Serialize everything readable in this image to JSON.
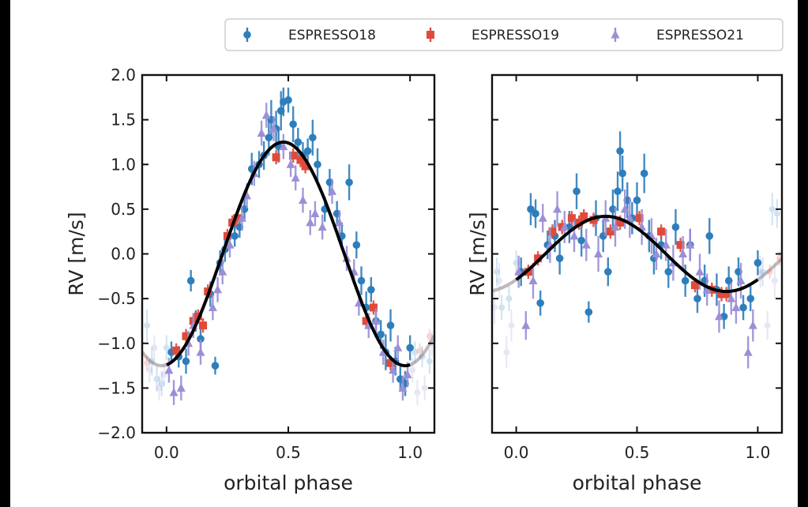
{
  "legend": {
    "entries": [
      {
        "label": "ESPRESSO18",
        "color": "#2e7ebc",
        "marker": "circle"
      },
      {
        "label": "ESPRESSO19",
        "color": "#e04a3a",
        "marker": "square"
      },
      {
        "label": "ESPRESSO21",
        "color": "#9c8fd6",
        "marker": "triangle"
      }
    ]
  },
  "chart_data": [
    {
      "type": "scatter",
      "xlabel": "orbital phase",
      "ylabel": "RV [m/s]",
      "xlim": [
        -0.1,
        1.1
      ],
      "ylim": [
        -2.0,
        2.0
      ],
      "xticks": [
        "0.0",
        "0.5",
        "1.0"
      ],
      "xtick_values": [
        0.0,
        0.5,
        1.0
      ],
      "yticks": [
        "2.0",
        "1.5",
        "1.0",
        "0.5",
        "0.0",
        "−0.5",
        "−1.0",
        "−1.5",
        "−2.0"
      ],
      "ytick_values": [
        2.0,
        1.5,
        1.0,
        0.5,
        0.0,
        -0.5,
        -1.0,
        -1.5,
        -2.0
      ],
      "show_yticklabels": true,
      "model": {
        "amplitude": 1.25,
        "phase_of_max": 0.48,
        "color": "#000000",
        "wrap_color": "#b0a8a8"
      },
      "series": [
        {
          "name": "ESPRESSO18",
          "marker": "circle",
          "color": "#2e7ebc",
          "x": [
            0.02,
            0.05,
            0.08,
            0.1,
            0.12,
            0.14,
            0.18,
            0.2,
            0.22,
            0.24,
            0.28,
            0.3,
            0.32,
            0.35,
            0.38,
            0.4,
            0.42,
            0.43,
            0.45,
            0.46,
            0.47,
            0.48,
            0.5,
            0.52,
            0.54,
            0.56,
            0.58,
            0.6,
            0.62,
            0.65,
            0.67,
            0.7,
            0.72,
            0.75,
            0.78,
            0.8,
            0.82,
            0.84,
            0.86,
            0.88,
            0.9,
            0.92,
            0.94,
            0.96,
            0.98,
            1.0
          ],
          "y": [
            -1.1,
            -1.15,
            -1.2,
            -0.3,
            -0.75,
            -0.95,
            -0.45,
            -1.25,
            -0.1,
            0.05,
            0.2,
            0.3,
            0.5,
            0.95,
            1.0,
            1.1,
            1.3,
            1.5,
            1.4,
            1.2,
            1.6,
            1.7,
            1.72,
            1.45,
            1.25,
            1.1,
            1.15,
            1.3,
            1.0,
            0.5,
            0.8,
            0.45,
            0.2,
            0.8,
            0.1,
            -0.3,
            -0.6,
            -0.4,
            -0.75,
            -0.9,
            -1.1,
            -0.8,
            -1.2,
            -1.4,
            -1.45,
            -1.05
          ],
          "yerr": [
            0.12,
            0.12,
            0.14,
            0.12,
            0.12,
            0.14,
            0.14,
            0.1,
            0.14,
            0.14,
            0.12,
            0.12,
            0.12,
            0.18,
            0.15,
            0.16,
            0.2,
            0.22,
            0.2,
            0.18,
            0.22,
            0.16,
            0.14,
            0.2,
            0.16,
            0.15,
            0.14,
            0.2,
            0.18,
            0.14,
            0.15,
            0.14,
            0.15,
            0.2,
            0.15,
            0.16,
            0.18,
            0.14,
            0.18,
            0.16,
            0.2,
            0.18,
            0.16,
            0.14,
            0.14,
            0.14
          ]
        },
        {
          "name": "ESPRESSO19",
          "marker": "square",
          "color": "#e04a3a",
          "x": [
            0.04,
            0.08,
            0.11,
            0.13,
            0.15,
            0.17,
            0.25,
            0.27,
            0.29,
            0.45,
            0.52,
            0.55,
            0.57,
            0.82,
            0.85,
            0.92
          ],
          "y": [
            -1.08,
            -0.92,
            -0.75,
            -0.7,
            -0.8,
            -0.42,
            0.2,
            0.35,
            0.4,
            1.08,
            1.1,
            1.05,
            0.98,
            -0.75,
            -0.6,
            -1.22
          ],
          "yerr": [
            0.08,
            0.08,
            0.08,
            0.08,
            0.08,
            0.08,
            0.08,
            0.08,
            0.08,
            0.08,
            0.08,
            0.08,
            0.08,
            0.08,
            0.08,
            0.08
          ]
        },
        {
          "name": "ESPRESSO21",
          "marker": "triangle",
          "color": "#9c8fd6",
          "x": [
            0.01,
            0.03,
            0.06,
            0.09,
            0.11,
            0.14,
            0.19,
            0.21,
            0.23,
            0.26,
            0.31,
            0.33,
            0.36,
            0.39,
            0.41,
            0.44,
            0.48,
            0.51,
            0.53,
            0.56,
            0.59,
            0.61,
            0.64,
            0.68,
            0.71,
            0.74,
            0.77,
            0.79,
            0.83,
            0.86,
            0.89,
            0.93,
            0.95,
            0.97,
            0.99
          ],
          "y": [
            -1.3,
            -1.55,
            -1.5,
            -1.0,
            -0.8,
            -1.1,
            -0.6,
            -0.4,
            -0.2,
            0.1,
            0.4,
            0.65,
            0.9,
            1.35,
            1.55,
            1.4,
            1.2,
            1.0,
            0.85,
            0.6,
            0.35,
            0.45,
            0.3,
            0.7,
            0.35,
            -0.05,
            -0.2,
            -0.55,
            -0.8,
            -0.75,
            -1.1,
            -1.3,
            -1.05,
            -1.5,
            -1.35
          ],
          "yerr": [
            0.14,
            0.14,
            0.14,
            0.14,
            0.14,
            0.14,
            0.14,
            0.14,
            0.14,
            0.14,
            0.14,
            0.14,
            0.14,
            0.14,
            0.14,
            0.14,
            0.14,
            0.14,
            0.14,
            0.14,
            0.14,
            0.14,
            0.14,
            0.14,
            0.14,
            0.14,
            0.14,
            0.14,
            0.14,
            0.14,
            0.14,
            0.14,
            0.14,
            0.14,
            0.14
          ]
        }
      ]
    },
    {
      "type": "scatter",
      "xlabel": "orbital phase",
      "ylabel": "RV [m/s]",
      "xlim": [
        -0.1,
        1.1
      ],
      "ylim": [
        -2.0,
        2.0
      ],
      "xticks": [
        "0.0",
        "0.5",
        "1.0"
      ],
      "xtick_values": [
        0.0,
        0.5,
        1.0
      ],
      "yticks": [],
      "ytick_values": [
        2.0,
        1.5,
        1.0,
        0.5,
        0.0,
        -0.5,
        -1.0,
        -1.5,
        -2.0
      ],
      "show_yticklabels": false,
      "model": {
        "amplitude": 0.42,
        "phase_of_max": 0.37,
        "color": "#000000",
        "wrap_color": "#b0a8a8"
      },
      "series": [
        {
          "name": "ESPRESSO18",
          "marker": "circle",
          "color": "#2e7ebc",
          "x": [
            0.02,
            0.06,
            0.08,
            0.1,
            0.13,
            0.16,
            0.18,
            0.22,
            0.25,
            0.27,
            0.3,
            0.33,
            0.36,
            0.38,
            0.4,
            0.42,
            0.43,
            0.44,
            0.46,
            0.48,
            0.5,
            0.53,
            0.55,
            0.57,
            0.6,
            0.63,
            0.66,
            0.7,
            0.72,
            0.75,
            0.78,
            0.8,
            0.83,
            0.86,
            0.88,
            0.92,
            0.94,
            0.97,
            1.0
          ],
          "y": [
            -0.2,
            0.5,
            0.45,
            -0.55,
            0.1,
            0.2,
            -0.05,
            0.3,
            0.7,
            0.15,
            -0.65,
            0.4,
            0.2,
            -0.2,
            0.5,
            0.7,
            1.15,
            0.9,
            0.6,
            0.4,
            0.6,
            0.9,
            0.2,
            -0.05,
            0.1,
            -0.2,
            0.3,
            -0.3,
            0.1,
            -0.5,
            -0.3,
            0.2,
            -0.4,
            -0.7,
            -0.3,
            -0.2,
            -0.6,
            -0.5,
            -0.1
          ],
          "yerr": [
            0.16,
            0.18,
            0.16,
            0.14,
            0.16,
            0.18,
            0.18,
            0.18,
            0.2,
            0.18,
            0.12,
            0.2,
            0.18,
            0.16,
            0.22,
            0.22,
            0.22,
            0.2,
            0.2,
            0.18,
            0.2,
            0.22,
            0.18,
            0.18,
            0.16,
            0.18,
            0.2,
            0.18,
            0.18,
            0.16,
            0.18,
            0.2,
            0.18,
            0.14,
            0.16,
            0.16,
            0.14,
            0.14,
            0.14
          ]
        },
        {
          "name": "ESPRESSO19",
          "marker": "square",
          "color": "#e04a3a",
          "x": [
            0.05,
            0.09,
            0.15,
            0.19,
            0.23,
            0.26,
            0.28,
            0.32,
            0.39,
            0.43,
            0.51,
            0.6,
            0.68,
            0.74,
            0.81,
            0.85,
            0.87
          ],
          "y": [
            -0.2,
            -0.05,
            0.25,
            0.3,
            0.4,
            0.35,
            0.42,
            0.38,
            0.25,
            0.35,
            0.4,
            0.25,
            0.1,
            -0.35,
            -0.4,
            -0.45,
            -0.45
          ],
          "yerr": [
            0.08,
            0.08,
            0.08,
            0.08,
            0.08,
            0.08,
            0.08,
            0.08,
            0.08,
            0.08,
            0.08,
            0.08,
            0.08,
            0.08,
            0.08,
            0.08,
            0.08
          ]
        },
        {
          "name": "ESPRESSO21",
          "marker": "triangle",
          "color": "#9c8fd6",
          "x": [
            0.01,
            0.04,
            0.07,
            0.11,
            0.14,
            0.17,
            0.2,
            0.24,
            0.29,
            0.34,
            0.37,
            0.41,
            0.45,
            0.47,
            0.52,
            0.56,
            0.58,
            0.62,
            0.65,
            0.69,
            0.72,
            0.76,
            0.79,
            0.84,
            0.89,
            0.91,
            0.93,
            0.96,
            0.98
          ],
          "y": [
            -0.2,
            -0.8,
            -0.3,
            0.4,
            0.1,
            0.5,
            0.3,
            0.2,
            0.1,
            0.0,
            0.4,
            0.3,
            0.5,
            0.4,
            0.3,
            0.2,
            0.0,
            0.1,
            -0.1,
            0.0,
            0.1,
            -0.2,
            -0.4,
            -0.7,
            -0.5,
            -0.6,
            -0.3,
            -1.1,
            -0.8
          ],
          "yerr": [
            0.18,
            0.16,
            0.2,
            0.16,
            0.2,
            0.2,
            0.18,
            0.18,
            0.18,
            0.2,
            0.2,
            0.22,
            0.22,
            0.22,
            0.2,
            0.2,
            0.18,
            0.18,
            0.2,
            0.2,
            0.18,
            0.2,
            0.18,
            0.18,
            0.18,
            0.18,
            0.2,
            0.18,
            0.18
          ]
        }
      ]
    }
  ]
}
